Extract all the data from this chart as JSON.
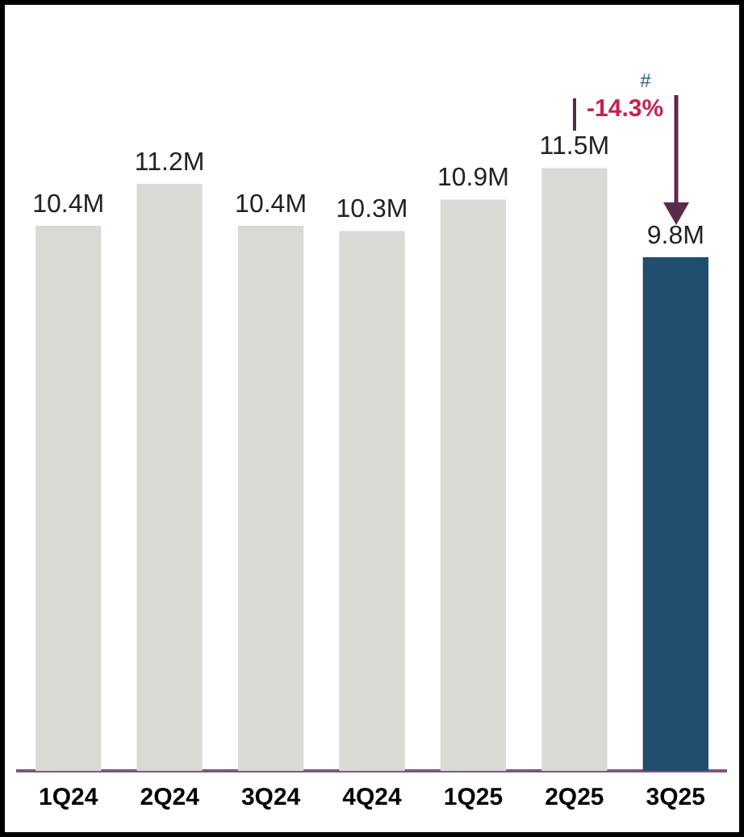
{
  "chart_data": {
    "type": "bar",
    "categories": [
      "1Q24",
      "2Q24",
      "3Q24",
      "4Q24",
      "1Q25",
      "2Q25",
      "3Q25"
    ],
    "values": [
      10.4,
      11.2,
      10.4,
      10.3,
      10.9,
      11.5,
      9.8
    ],
    "colors": [
      "#d9d9d6",
      "#d9d9d6",
      "#d9d9d6",
      "#d9d9d6",
      "#d9d9d6",
      "#d9d9d6",
      "#1f4e6e"
    ],
    "value_labels": [
      "10.4M",
      "11.2M",
      "10.4M",
      "10.3M",
      "10.9M",
      "11.5M",
      "9.8M"
    ],
    "tick_labels": "x",
    "grid": false,
    "legend": false,
    "annotations": [
      "-14.3%",
      "#"
    ]
  }
}
